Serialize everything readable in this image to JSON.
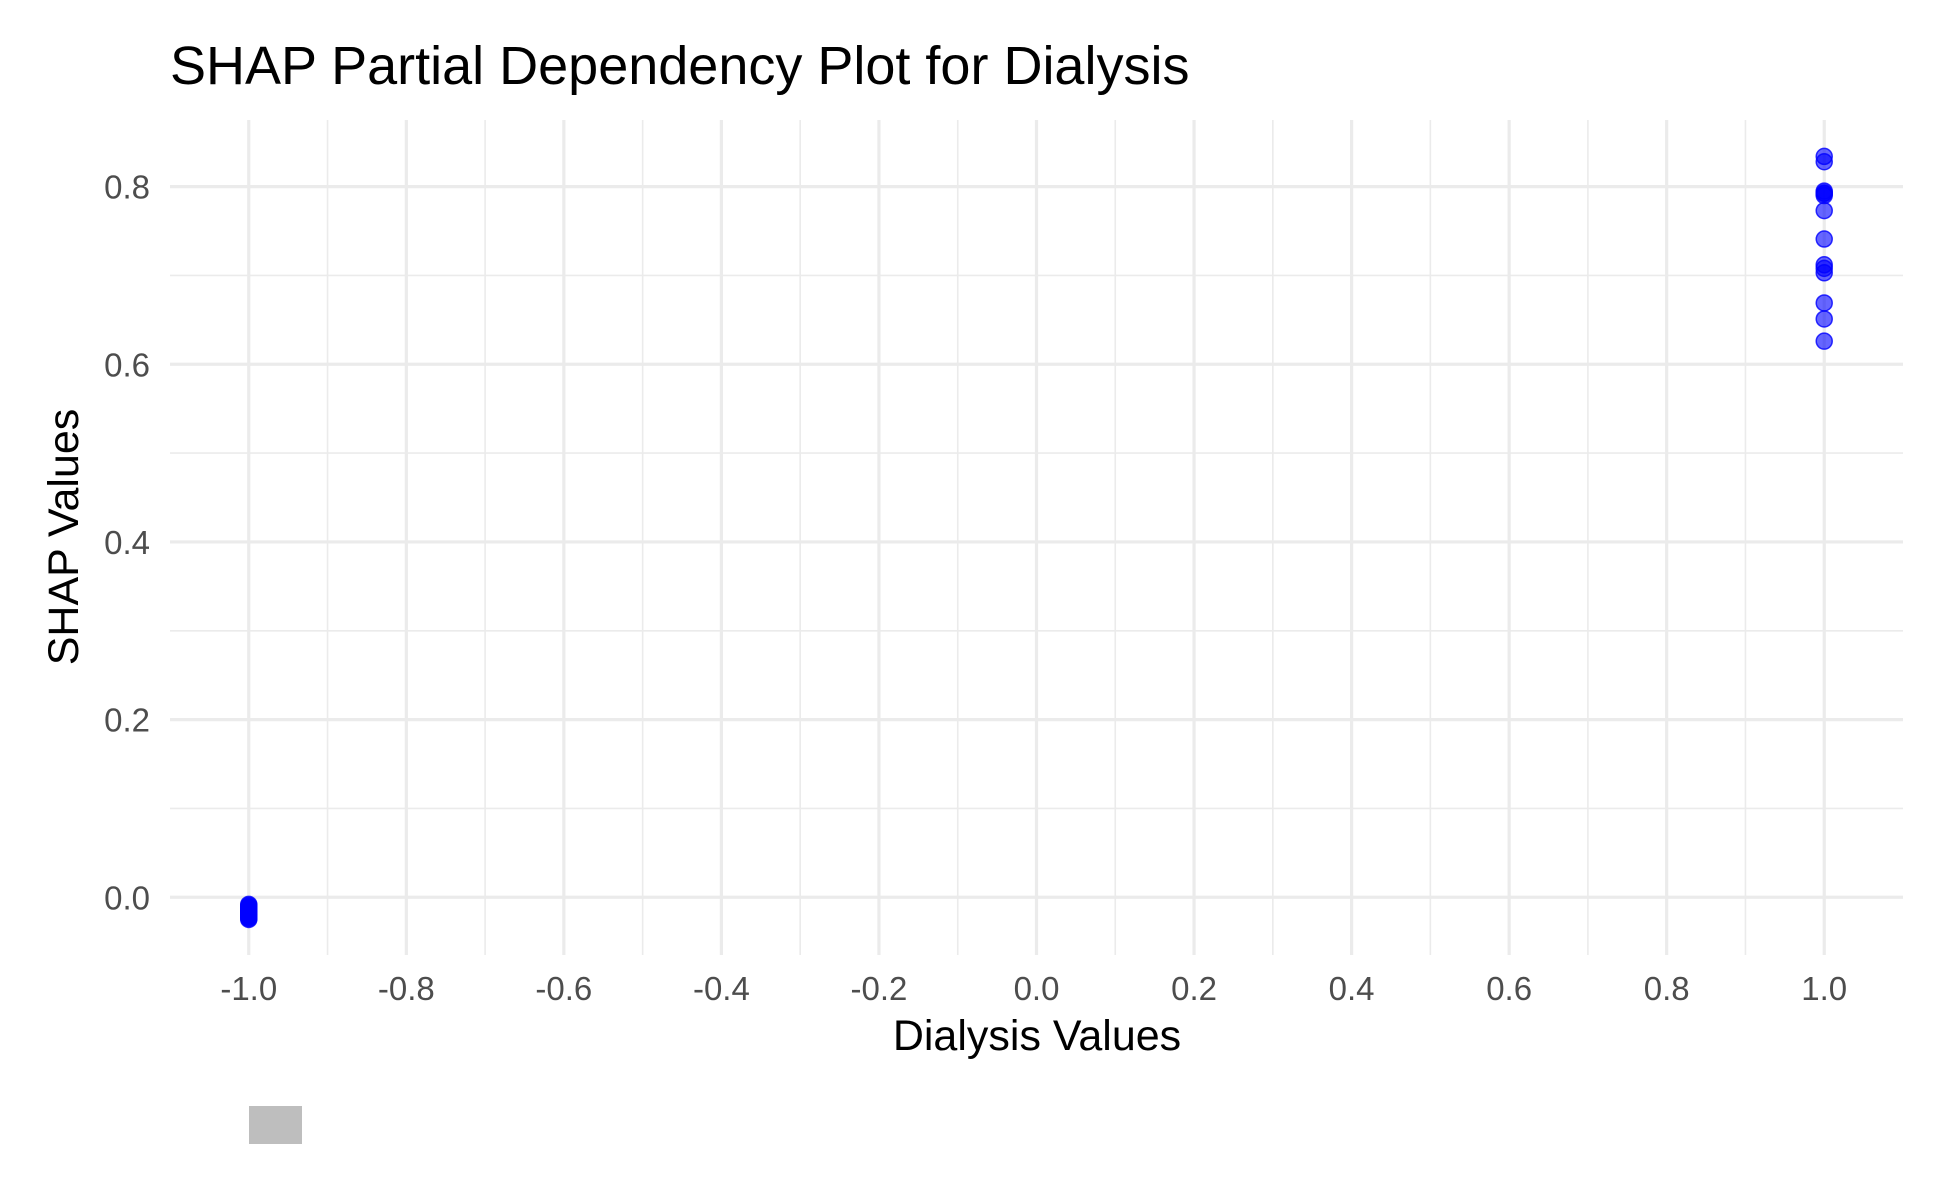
{
  "chart_data": {
    "type": "scatter",
    "title": "SHAP Partial Dependency Plot for Dialysis",
    "xlabel": "Dialysis Values",
    "ylabel": "SHAP Values",
    "xlim": [
      -1.1,
      1.1
    ],
    "ylim": [
      -0.065,
      0.875
    ],
    "x_ticks": [
      -1.0,
      -0.8,
      -0.6,
      -0.4,
      -0.2,
      0.0,
      0.2,
      0.4,
      0.6,
      0.8,
      1.0
    ],
    "x_tick_labels": [
      "-1.0",
      "-0.8",
      "-0.6",
      "-0.4",
      "-0.2",
      "0.0",
      "0.2",
      "0.4",
      "0.6",
      "0.8",
      "1.0"
    ],
    "y_ticks": [
      0.0,
      0.2,
      0.4,
      0.6,
      0.8
    ],
    "y_tick_labels": [
      "0.0",
      "0.2",
      "0.4",
      "0.6",
      "0.8"
    ],
    "grid": true,
    "point_color": "#0000ff",
    "point_opacity": 0.6,
    "legend_key_color": "#bebebe",
    "series": [
      {
        "x": [
          -1,
          -1,
          -1,
          -1,
          -1,
          -1,
          -1,
          -1,
          -1,
          -1,
          -1,
          -1,
          -1,
          -1,
          -1,
          -1,
          -1,
          -1,
          -1,
          -1,
          1,
          1,
          1,
          1,
          1,
          1,
          1,
          1,
          1,
          1,
          1,
          1,
          1,
          1
        ],
        "y": [
          -0.008,
          -0.009,
          -0.01,
          -0.011,
          -0.012,
          -0.013,
          -0.014,
          -0.015,
          -0.016,
          -0.017,
          -0.018,
          -0.019,
          -0.02,
          -0.021,
          -0.022,
          -0.023,
          -0.024,
          -0.025,
          -0.012,
          -0.02,
          0.834,
          0.828,
          0.795,
          0.792,
          0.793,
          0.773,
          0.741,
          0.712,
          0.708,
          0.703,
          0.669,
          0.651,
          0.626,
          0.79
        ]
      }
    ]
  }
}
